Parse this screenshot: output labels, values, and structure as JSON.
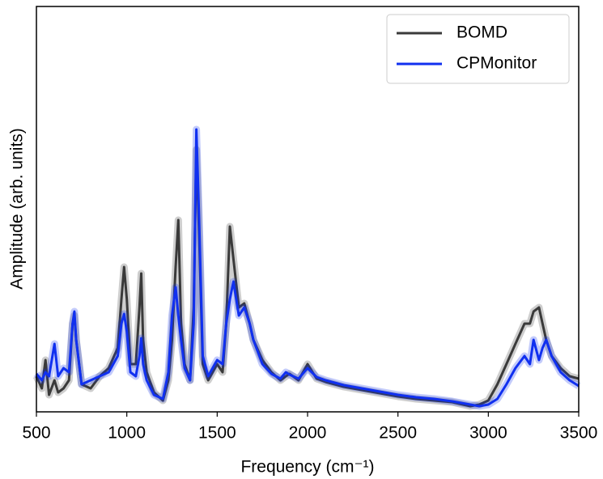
{
  "chart_data": {
    "type": "line",
    "xlabel": "Frequency (cm⁻¹)",
    "ylabel": "Amplitude (arb. units)",
    "x": [
      500,
      530,
      550,
      570,
      600,
      620,
      650,
      680,
      700,
      710,
      720,
      750,
      800,
      850,
      900,
      950,
      970,
      985,
      1000,
      1020,
      1050,
      1070,
      1080,
      1090,
      1110,
      1150,
      1200,
      1230,
      1250,
      1270,
      1285,
      1300,
      1320,
      1350,
      1370,
      1385,
      1400,
      1420,
      1450,
      1500,
      1530,
      1550,
      1570,
      1590,
      1620,
      1650,
      1680,
      1700,
      1750,
      1800,
      1850,
      1880,
      1900,
      1950,
      2000,
      2050,
      2100,
      2200,
      2300,
      2400,
      2500,
      2600,
      2700,
      2800,
      2900,
      2950,
      3000,
      3050,
      3100,
      3150,
      3200,
      3230,
      3250,
      3280,
      3300,
      3320,
      3350,
      3400,
      3450,
      3500
    ],
    "series": [
      {
        "name": "BOMD",
        "color": "#3a3a3a",
        "values": [
          44,
          29,
          64,
          21,
          39,
          24,
          29,
          39,
          109,
          119,
          89,
          34,
          29,
          44,
          54,
          79,
          139,
          179,
          139,
          59,
          59,
          129,
          171,
          89,
          49,
          24,
          14,
          39,
          89,
          179,
          237,
          109,
          59,
          39,
          129,
          324,
          219,
          59,
          39,
          59,
          49,
          109,
          229,
          189,
          129,
          134,
          109,
          89,
          64,
          49,
          39,
          44,
          47,
          39,
          59,
          41,
          37,
          31,
          27,
          23,
          19,
          16,
          14,
          12,
          7,
          9,
          14,
          34,
          59,
          84,
          109,
          109,
          124,
          129,
          109,
          89,
          69,
          54,
          44,
          41
        ]
      },
      {
        "name": "CPMonitor",
        "color": "#1030f0",
        "values": [
          47,
          39,
          49,
          44,
          84,
          44,
          54,
          49,
          109,
          124,
          89,
          34,
          39,
          44,
          49,
          69,
          109,
          121,
          99,
          49,
          44,
          69,
          91,
          59,
          39,
          21,
          16,
          49,
          119,
          154,
          119,
          89,
          54,
          39,
          109,
          349,
          239,
          69,
          44,
          64,
          59,
          109,
          139,
          161,
          119,
          129,
          109,
          89,
          59,
          47,
          41,
          49,
          46,
          41,
          54,
          43,
          39,
          33,
          29,
          25,
          21,
          18,
          16,
          13,
          9,
          7,
          9,
          16,
          34,
          54,
          69,
          59,
          89,
          64,
          79,
          89,
          69,
          49,
          39,
          32
        ]
      }
    ],
    "xlim": [
      500,
      3500
    ],
    "xticks": [
      500,
      1000,
      1500,
      2000,
      2500,
      3000,
      3500
    ],
    "ylim": [
      0,
      501
    ],
    "legend": "upper right"
  }
}
